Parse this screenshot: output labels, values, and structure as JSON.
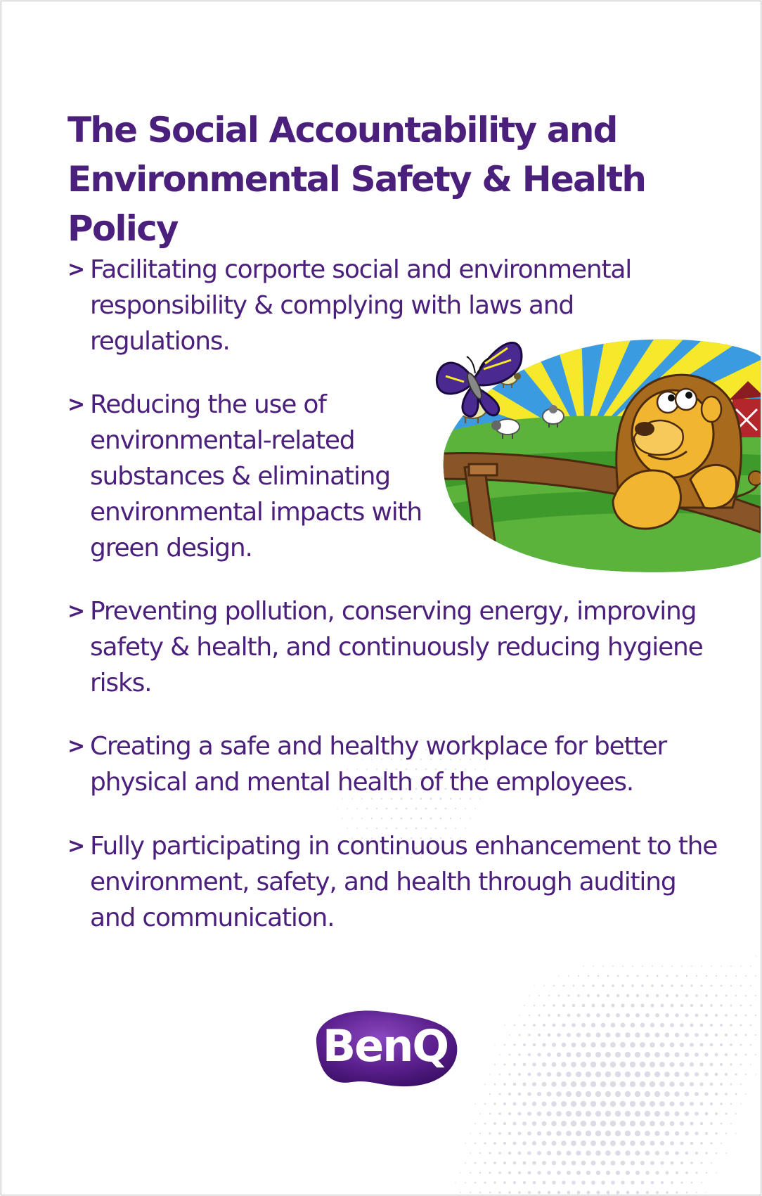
{
  "title": {
    "line1": "The Social Accountability and",
    "line2": "Environmental Safety & Health Policy"
  },
  "bullet_marker": ">",
  "bullets": [
    "Facilitating corporte social and environmental responsibility & complying with laws and regulations.",
    "Reducing the use of environmental-related substances & eliminating environmental impacts with green design.",
    "Preventing pollution, conserving energy, improving safety & health, and continuously reducing hygiene risks.",
    "Creating a safe and healthy workplace for better physical and mental health of the employees.",
    "Fully participating in continuous enhancement to the environment, safety, and health through auditing and communication."
  ],
  "illustration": {
    "subject": "cartoon lion leaning on a wooden fence with butterfly, sheep and sunburst"
  },
  "logo": {
    "text": "BenQ",
    "colors": {
      "background": "#5a1f8c",
      "text": "#ffffff"
    }
  },
  "colors": {
    "text": "#4b1f7c",
    "accent_purple": "#5a1f8c",
    "sky_blue": "#3b9be0",
    "sun_yellow": "#f6e82a",
    "grass_green": "#5bb33b"
  }
}
